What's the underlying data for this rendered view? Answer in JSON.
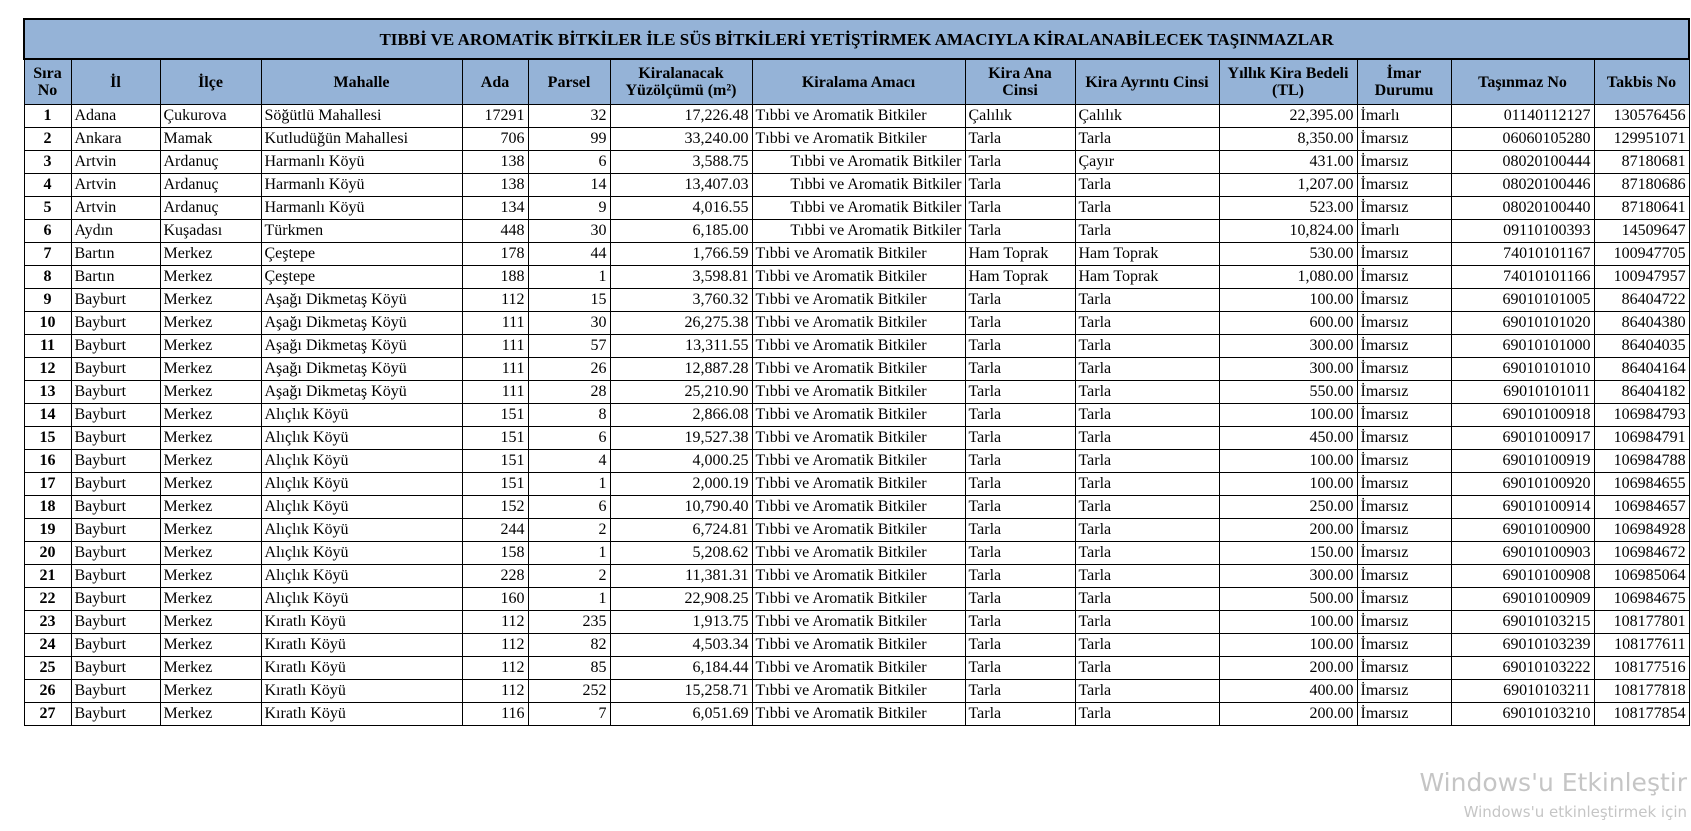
{
  "title": "TIBBİ VE AROMATİK BİTKİLER İLE SÜS BİTKİLERİ YETİŞTİRMEK AMACIYLA KİRALANABİLECEK TAŞINMAZLAR",
  "header_color": "#95b3d7",
  "columns": [
    "Sıra No",
    "İl",
    "İlçe",
    "Mahalle",
    "Ada",
    "Parsel",
    "Kiralanacak Yüzölçümü (m²)",
    "Kiralama Amacı",
    "Kira Ana Cinsi",
    "Kira Ayrıntı Cinsi",
    "Yıllık Kira Bedeli (TL)",
    "İmar Durumu",
    "Taşınmaz No",
    "Takbis No"
  ],
  "rows": [
    [
      "1",
      "Adana",
      "Çukurova",
      "Söğütlü Mahallesi",
      "17291",
      "32",
      "17,226.48",
      "Tıbbi ve Aromatik Bitkiler",
      "Çalılık",
      "Çalılık",
      "22,395.00",
      "İmarlı",
      "01140112127",
      "130576456"
    ],
    [
      "2",
      "Ankara",
      "Mamak",
      "Kutludüğün Mahallesi",
      "706",
      "99",
      "33,240.00",
      "Tıbbi ve Aromatik Bitkiler",
      "Tarla",
      "Tarla",
      "8,350.00",
      "İmarsız",
      "06060105280",
      "129951071"
    ],
    [
      "3",
      "Artvin",
      "Ardanuç",
      "Harmanlı Köyü",
      "138",
      "6",
      "3,588.75",
      "Tıbbi ve Aromatik Bitkiler",
      "Tarla",
      "Çayır",
      "431.00",
      "İmarsız",
      "08020100444",
      "87180681"
    ],
    [
      "4",
      "Artvin",
      "Ardanuç",
      "Harmanlı Köyü",
      "138",
      "14",
      "13,407.03",
      "Tıbbi ve Aromatik Bitkiler",
      "Tarla",
      "Tarla",
      "1,207.00",
      "İmarsız",
      "08020100446",
      "87180686"
    ],
    [
      "5",
      "Artvin",
      "Ardanuç",
      "Harmanlı Köyü",
      "134",
      "9",
      "4,016.55",
      "Tıbbi ve Aromatik Bitkiler",
      "Tarla",
      "Tarla",
      "523.00",
      "İmarsız",
      "08020100440",
      "87180641"
    ],
    [
      "6",
      "Aydın",
      "Kuşadası",
      "Türkmen",
      "448",
      "30",
      "6,185.00",
      "Tıbbi ve Aromatik Bitkiler",
      "Tarla",
      "Tarla",
      "10,824.00",
      "İmarlı",
      "09110100393",
      "14509647"
    ],
    [
      "7",
      "Bartın",
      "Merkez",
      "Çeştepe",
      "178",
      "44",
      "1,766.59",
      "Tıbbi ve Aromatik Bitkiler",
      "Ham Toprak",
      "Ham Toprak",
      "530.00",
      "İmarsız",
      "74010101167",
      "100947705"
    ],
    [
      "8",
      "Bartın",
      "Merkez",
      "Çeştepe",
      "188",
      "1",
      "3,598.81",
      "Tıbbi ve Aromatik Bitkiler",
      "Ham Toprak",
      "Ham Toprak",
      "1,080.00",
      "İmarsız",
      "74010101166",
      "100947957"
    ],
    [
      "9",
      "Bayburt",
      "Merkez",
      "Aşağı Dikmetaş Köyü",
      "112",
      "15",
      "3,760.32",
      "Tıbbi ve Aromatik Bitkiler",
      "Tarla",
      "Tarla",
      "100.00",
      "İmarsız",
      "69010101005",
      "86404722"
    ],
    [
      "10",
      "Bayburt",
      "Merkez",
      "Aşağı Dikmetaş Köyü",
      "111",
      "30",
      "26,275.38",
      "Tıbbi ve Aromatik Bitkiler",
      "Tarla",
      "Tarla",
      "600.00",
      "İmarsız",
      "69010101020",
      "86404380"
    ],
    [
      "11",
      "Bayburt",
      "Merkez",
      "Aşağı Dikmetaş Köyü",
      "111",
      "57",
      "13,311.55",
      "Tıbbi ve Aromatik Bitkiler",
      "Tarla",
      "Tarla",
      "300.00",
      "İmarsız",
      "69010101000",
      "86404035"
    ],
    [
      "12",
      "Bayburt",
      "Merkez",
      "Aşağı Dikmetaş Köyü",
      "111",
      "26",
      "12,887.28",
      "Tıbbi ve Aromatik Bitkiler",
      "Tarla",
      "Tarla",
      "300.00",
      "İmarsız",
      "69010101010",
      "86404164"
    ],
    [
      "13",
      "Bayburt",
      "Merkez",
      "Aşağı Dikmetaş Köyü",
      "111",
      "28",
      "25,210.90",
      "Tıbbi ve Aromatik Bitkiler",
      "Tarla",
      "Tarla",
      "550.00",
      "İmarsız",
      "69010101011",
      "86404182"
    ],
    [
      "14",
      "Bayburt",
      "Merkez",
      "Alıçlık Köyü",
      "151",
      "8",
      "2,866.08",
      "Tıbbi ve Aromatik Bitkiler",
      "Tarla",
      "Tarla",
      "100.00",
      "İmarsız",
      "69010100918",
      "106984793"
    ],
    [
      "15",
      "Bayburt",
      "Merkez",
      "Alıçlık Köyü",
      "151",
      "6",
      "19,527.38",
      "Tıbbi ve Aromatik Bitkiler",
      "Tarla",
      "Tarla",
      "450.00",
      "İmarsız",
      "69010100917",
      "106984791"
    ],
    [
      "16",
      "Bayburt",
      "Merkez",
      "Alıçlık Köyü",
      "151",
      "4",
      "4,000.25",
      "Tıbbi ve Aromatik Bitkiler",
      "Tarla",
      "Tarla",
      "100.00",
      "İmarsız",
      "69010100919",
      "106984788"
    ],
    [
      "17",
      "Bayburt",
      "Merkez",
      "Alıçlık Köyü",
      "151",
      "1",
      "2,000.19",
      "Tıbbi ve Aromatik Bitkiler",
      "Tarla",
      "Tarla",
      "100.00",
      "İmarsız",
      "69010100920",
      "106984655"
    ],
    [
      "18",
      "Bayburt",
      "Merkez",
      "Alıçlık Köyü",
      "152",
      "6",
      "10,790.40",
      "Tıbbi ve Aromatik Bitkiler",
      "Tarla",
      "Tarla",
      "250.00",
      "İmarsız",
      "69010100914",
      "106984657"
    ],
    [
      "19",
      "Bayburt",
      "Merkez",
      "Alıçlık Köyü",
      "244",
      "2",
      "6,724.81",
      "Tıbbi ve Aromatik Bitkiler",
      "Tarla",
      "Tarla",
      "200.00",
      "İmarsız",
      "69010100900",
      "106984928"
    ],
    [
      "20",
      "Bayburt",
      "Merkez",
      "Alıçlık Köyü",
      "158",
      "1",
      "5,208.62",
      "Tıbbi ve Aromatik Bitkiler",
      "Tarla",
      "Tarla",
      "150.00",
      "İmarsız",
      "69010100903",
      "106984672"
    ],
    [
      "21",
      "Bayburt",
      "Merkez",
      "Alıçlık Köyü",
      "228",
      "2",
      "11,381.31",
      "Tıbbi ve Aromatik Bitkiler",
      "Tarla",
      "Tarla",
      "300.00",
      "İmarsız",
      "69010100908",
      "106985064"
    ],
    [
      "22",
      "Bayburt",
      "Merkez",
      "Alıçlık Köyü",
      "160",
      "1",
      "22,908.25",
      "Tıbbi ve Aromatik Bitkiler",
      "Tarla",
      "Tarla",
      "500.00",
      "İmarsız",
      "69010100909",
      "106984675"
    ],
    [
      "23",
      "Bayburt",
      "Merkez",
      "Kıratlı Köyü",
      "112",
      "235",
      "1,913.75",
      "Tıbbi ve Aromatik Bitkiler",
      "Tarla",
      "Tarla",
      "100.00",
      "İmarsız",
      "69010103215",
      "108177801"
    ],
    [
      "24",
      "Bayburt",
      "Merkez",
      "Kıratlı Köyü",
      "112",
      "82",
      "4,503.34",
      "Tıbbi ve Aromatik Bitkiler",
      "Tarla",
      "Tarla",
      "100.00",
      "İmarsız",
      "69010103239",
      "108177611"
    ],
    [
      "25",
      "Bayburt",
      "Merkez",
      "Kıratlı Köyü",
      "112",
      "85",
      "6,184.44",
      "Tıbbi ve Aromatik Bitkiler",
      "Tarla",
      "Tarla",
      "200.00",
      "İmarsız",
      "69010103222",
      "108177516"
    ],
    [
      "26",
      "Bayburt",
      "Merkez",
      "Kıratlı Köyü",
      "112",
      "252",
      "15,258.71",
      "Tıbbi ve Aromatik Bitkiler",
      "Tarla",
      "Tarla",
      "400.00",
      "İmarsız",
      "69010103211",
      "108177818"
    ],
    [
      "27",
      "Bayburt",
      "Merkez",
      "Kıratlı Köyü",
      "116",
      "7",
      "6,051.69",
      "Tıbbi ve Aromatik Bitkiler",
      "Tarla",
      "Tarla",
      "200.00",
      "İmarsız",
      "69010103210",
      "108177854"
    ]
  ],
  "watermark": {
    "line1": "Windows'u Etkinleştir",
    "line2": "Windows'u etkinleştirmek için"
  }
}
